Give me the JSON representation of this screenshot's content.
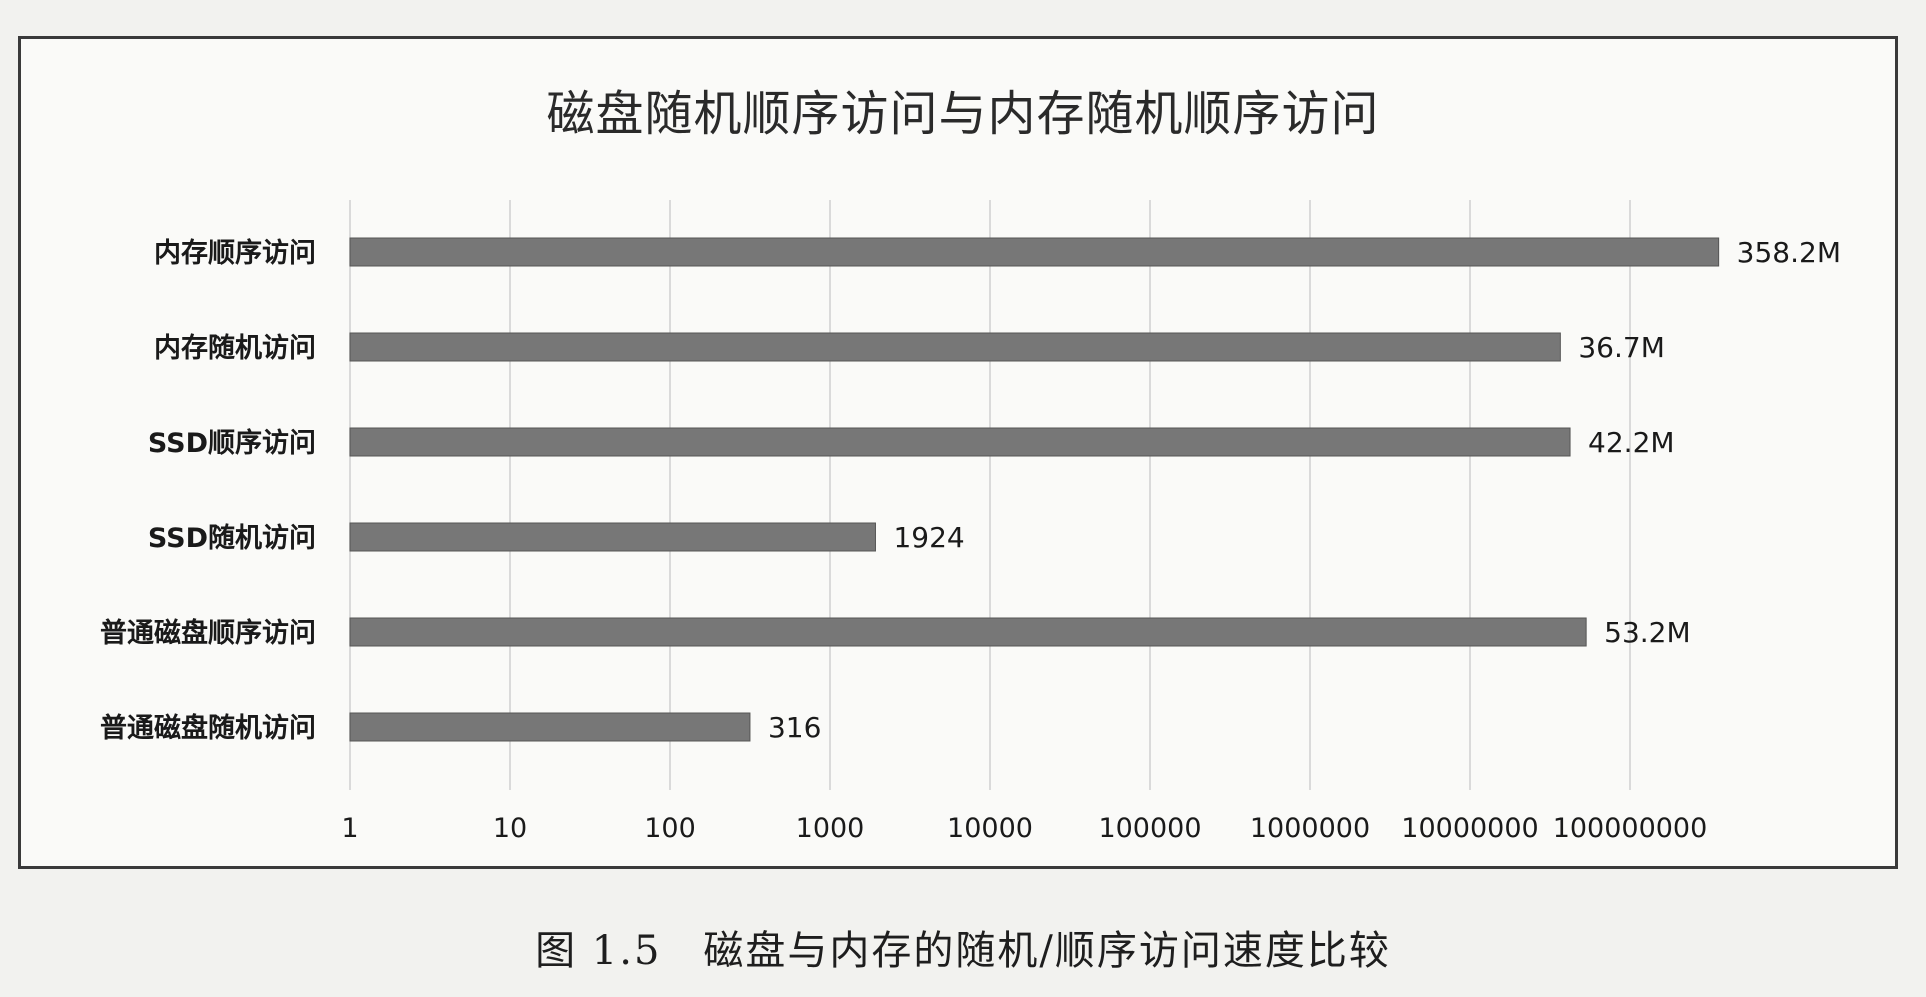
{
  "chart_data": {
    "type": "bar",
    "orientation": "horizontal",
    "title": "磁盘随机顺序访问与内存随机顺序访问",
    "caption": "图 1.5　磁盘与内存的随机/顺序访问速度比较",
    "x_scale": "log",
    "xlim": [
      1,
      1000000000
    ],
    "x_ticks": [
      "1",
      "10",
      "100",
      "1000",
      "10000",
      "100000",
      "1000000",
      "10000000",
      "100000000"
    ],
    "categories": [
      "内存顺序访问",
      "内存随机访问",
      "SSD顺序访问",
      "SSD随机访问",
      "普通磁盘顺序访问",
      "普通磁盘随机访问"
    ],
    "values": [
      358200000,
      36700000,
      42200000,
      1924,
      53200000,
      316
    ],
    "value_labels": [
      "358.2M",
      "36.7M",
      "42.2M",
      "1924",
      "53.2M",
      "316"
    ],
    "bar_color": "#777777",
    "grid": "vertical",
    "legend": "none"
  }
}
